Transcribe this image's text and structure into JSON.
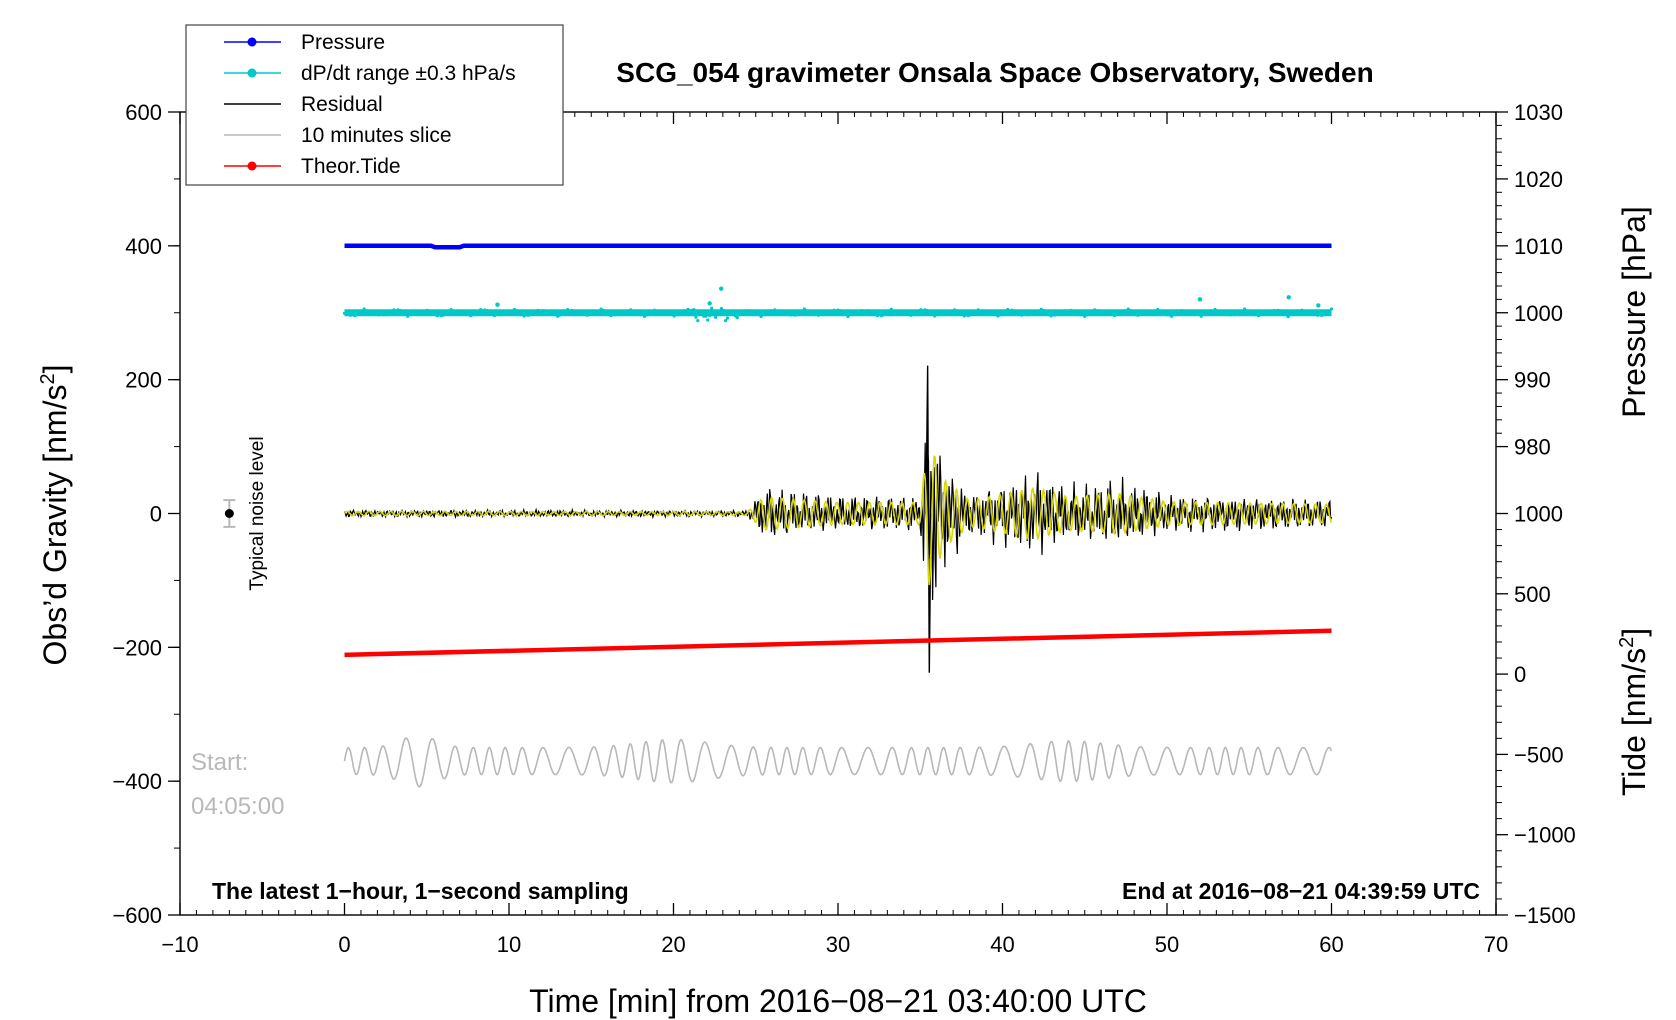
{
  "chart_data": {
    "type": "line",
    "title": "SCG_054 gravimeter Onsala Space Observatory, Sweden",
    "xlabel": "Time [min] from 2016−08−21 03:40:00 UTC",
    "ylabel_left": "Obs’d Gravity [nm/s",
    "ylabel_left_sup": "2",
    "ylabel_left_close": "]",
    "ylabel_right_pressure": "Pressure [hPa]",
    "ylabel_right_tide": "Tide [nm/s",
    "ylabel_right_tide_sup": "2",
    "ylabel_right_tide_close": "]",
    "xlim": [
      -10,
      70
    ],
    "ylim": [
      -600,
      600
    ],
    "pressure_lim": [
      970,
      1030
    ],
    "tide_lim": [
      -1500,
      1000
    ],
    "x_ticks": [
      {
        "v": -10,
        "label": "−10"
      },
      {
        "v": 0,
        "label": "0"
      },
      {
        "v": 10,
        "label": "10"
      },
      {
        "v": 20,
        "label": "20"
      },
      {
        "v": 30,
        "label": "30"
      },
      {
        "v": 40,
        "label": "40"
      },
      {
        "v": 50,
        "label": "50"
      },
      {
        "v": 60,
        "label": "60"
      },
      {
        "v": 70,
        "label": "70"
      }
    ],
    "y_ticks": [
      {
        "v": 600,
        "label": "600"
      },
      {
        "v": 400,
        "label": "400"
      },
      {
        "v": 200,
        "label": "200"
      },
      {
        "v": 0,
        "label": "0"
      },
      {
        "v": -200,
        "label": "−200"
      },
      {
        "v": -400,
        "label": "−400"
      },
      {
        "v": -600,
        "label": "−600"
      }
    ],
    "pressure_ticks": [
      {
        "v": 1030,
        "label": "1030"
      },
      {
        "v": 1020,
        "label": "1020"
      },
      {
        "v": 1010,
        "label": "1010"
      },
      {
        "v": 1000,
        "label": "1000"
      },
      {
        "v": 990,
        "label": "990"
      },
      {
        "v": 980,
        "label": "980"
      }
    ],
    "tide_ticks": [
      {
        "v": 1000,
        "label": "1000"
      },
      {
        "v": 500,
        "label": "500"
      },
      {
        "v": 0,
        "label": "0"
      },
      {
        "v": -500,
        "label": "−500"
      },
      {
        "v": -1000,
        "label": "−1000"
      },
      {
        "v": -1500,
        "label": "−1500"
      }
    ],
    "legend": [
      {
        "label": "Pressure",
        "color": "#0000ff",
        "marker": true
      },
      {
        "label": "dP/dt range ±0.3 hPa/s",
        "color": "#00c8c8",
        "marker": true
      },
      {
        "label": "Residual",
        "color": "#000000",
        "marker": false
      },
      {
        "label": "10 minutes slice",
        "color": "#b8b8b8",
        "marker": false
      },
      {
        "label": "Theor.Tide",
        "color": "#ff0000",
        "marker": true
      }
    ],
    "series": [
      {
        "name": "Pressure",
        "axis": "pressure",
        "color": "#0000ff",
        "x_start": 0,
        "x_end": 60,
        "value": 1010,
        "dip": {
          "x_from": 5.5,
          "x_to": 7.0,
          "value": 1009.8
        }
      },
      {
        "name": "dP/dt range ±0.3 hPa/s",
        "axis": "gravity",
        "color": "#00c8c8",
        "x_start": 0,
        "x_end": 60,
        "value": 300,
        "outliers": [
          {
            "x": 22.9,
            "y": 336
          },
          {
            "x": 52.0,
            "y": 320
          },
          {
            "x": 57.4,
            "y": 323
          },
          {
            "x": 22.2,
            "y": 314
          },
          {
            "x": 9.3,
            "y": 312
          },
          {
            "x": 59.2,
            "y": 311
          }
        ]
      },
      {
        "name": "Residual",
        "axis": "gravity",
        "color": "#000000",
        "x_start": 0,
        "x_end": 60,
        "envelope": [
          {
            "x": 0,
            "amp": 6
          },
          {
            "x": 24.5,
            "amp": 5
          },
          {
            "x": 25.5,
            "amp": 45
          },
          {
            "x": 30,
            "amp": 30
          },
          {
            "x": 35,
            "amp": 30
          },
          {
            "x": 35.5,
            "amp": 200
          },
          {
            "x": 36.5,
            "amp": 90
          },
          {
            "x": 38,
            "amp": 35
          },
          {
            "x": 42,
            "amp": 70
          },
          {
            "x": 44,
            "amp": 45
          },
          {
            "x": 47,
            "amp": 55
          },
          {
            "x": 50,
            "amp": 32
          },
          {
            "x": 60,
            "amp": 25
          }
        ],
        "peaks": [
          {
            "x": 35.45,
            "max": 221,
            "min": -238
          }
        ]
      },
      {
        "name": "Filtered residual",
        "axis": "gravity",
        "color": "#d8d800",
        "x_start": 0,
        "x_end": 60
      },
      {
        "name": "10 minutes slice",
        "axis": "gravity",
        "color": "#b8b8b8",
        "x_start": 0,
        "x_end": 60,
        "center": -370,
        "amp": 45
      },
      {
        "name": "Theor.Tide",
        "axis": "tide",
        "color": "#ff0000",
        "x_start": 0,
        "x_end": 60,
        "y_start": 120,
        "y_end": 270
      }
    ],
    "noise_marker": {
      "x": -7,
      "y": 0,
      "err": 20,
      "label": "Typical noise level"
    },
    "start_label": "Start:",
    "start_time": "04:05:00",
    "note_left": "The latest 1−hour, 1−second sampling",
    "note_right": "End at 2016−08−21 04:39:59 UTC"
  }
}
